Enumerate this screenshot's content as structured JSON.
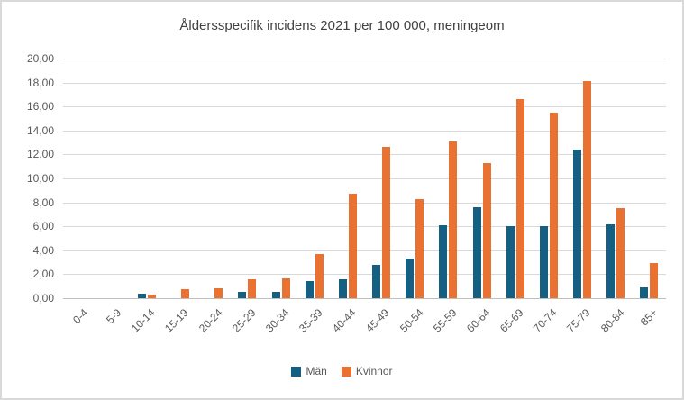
{
  "title": "Åldersspecifik incidens 2021 per 100 000, meningeom",
  "colors": {
    "man": "#156082",
    "kvinnor": "#E97132",
    "grid": "#D9D9D9",
    "axis": "#BFBFBF",
    "border": "#D9D9D9",
    "background": "#ffffff",
    "title_text": "#404040",
    "tick_text": "#595959"
  },
  "chart_data": {
    "type": "bar",
    "title": "Åldersspecifik incidens 2021 per 100 000, meningeom",
    "xlabel": "",
    "ylabel": "",
    "ylim": [
      0,
      20
    ],
    "ytick_step": 2,
    "ytick_labels": [
      "0,00",
      "2,00",
      "4,00",
      "6,00",
      "8,00",
      "10,00",
      "12,00",
      "14,00",
      "16,00",
      "18,00",
      "20,00"
    ],
    "grid": true,
    "legend_position": "bottom",
    "categories": [
      "0-4",
      "5-9",
      "10-14",
      "15-19",
      "20-24",
      "25-29",
      "30-34",
      "35-39",
      "40-44",
      "45-49",
      "50-54",
      "55-59",
      "60-64",
      "65-69",
      "70-74",
      "75-79",
      "80-84",
      "85+"
    ],
    "series": [
      {
        "name": "Män",
        "color": "#156082",
        "values": [
          0,
          0,
          0.35,
          0,
          0,
          0.5,
          0.5,
          1.45,
          1.6,
          2.75,
          3.3,
          6.1,
          7.6,
          6.0,
          6.0,
          12.4,
          6.2,
          0.9
        ]
      },
      {
        "name": "Kvinnor",
        "color": "#E97132",
        "values": [
          0,
          0,
          0.3,
          0.75,
          0.8,
          1.55,
          1.65,
          3.7,
          8.7,
          12.6,
          8.3,
          13.1,
          11.25,
          16.6,
          15.5,
          18.1,
          7.55,
          2.95
        ]
      }
    ]
  }
}
